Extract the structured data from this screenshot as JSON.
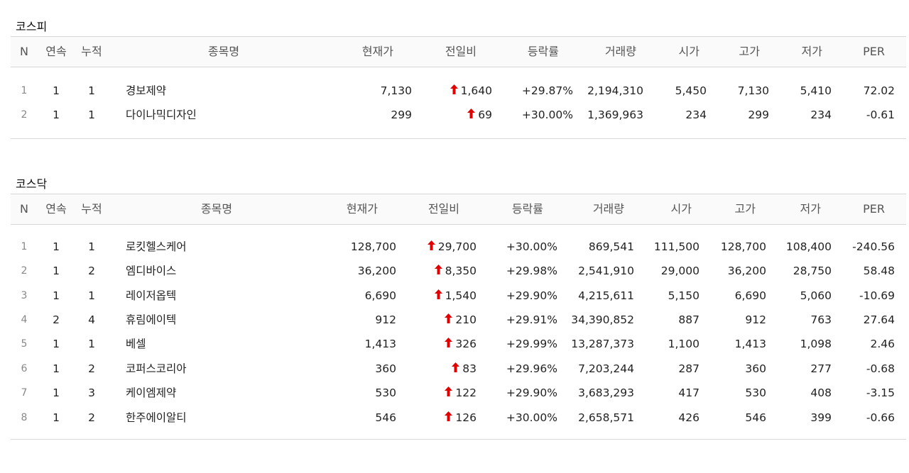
{
  "headers": [
    "N",
    "연속",
    "누적",
    "종목명",
    "현재가",
    "전일비",
    "등락률",
    "거래량",
    "시가",
    "고가",
    "저가",
    "PER"
  ],
  "kospi": {
    "title": "코스피",
    "rows": [
      {
        "n": "1",
        "con": "1",
        "cum": "1",
        "name": "경보제약",
        "price": "7,130",
        "change": "1,640",
        "rate": "+29.87%",
        "volume": "2,194,310",
        "open": "5,450",
        "high": "7,130",
        "low": "5,410",
        "per": "72.02"
      },
      {
        "n": "2",
        "con": "1",
        "cum": "1",
        "name": "다이나믹디자인",
        "price": "299",
        "change": "69",
        "rate": "+30.00%",
        "volume": "1,369,963",
        "open": "234",
        "high": "299",
        "low": "234",
        "per": "-0.61"
      }
    ]
  },
  "kosdaq": {
    "title": "코스닥",
    "rows": [
      {
        "n": "1",
        "con": "1",
        "cum": "1",
        "name": "로킷헬스케어",
        "price": "128,700",
        "change": "29,700",
        "rate": "+30.00%",
        "volume": "869,541",
        "open": "111,500",
        "high": "128,700",
        "low": "108,400",
        "per": "-240.56"
      },
      {
        "n": "2",
        "con": "1",
        "cum": "2",
        "name": "엠디바이스",
        "price": "36,200",
        "change": "8,350",
        "rate": "+29.98%",
        "volume": "2,541,910",
        "open": "29,000",
        "high": "36,200",
        "low": "28,750",
        "per": "58.48"
      },
      {
        "n": "3",
        "con": "1",
        "cum": "1",
        "name": "레이저옵텍",
        "price": "6,690",
        "change": "1,540",
        "rate": "+29.90%",
        "volume": "4,215,611",
        "open": "5,150",
        "high": "6,690",
        "low": "5,060",
        "per": "-10.69"
      },
      {
        "n": "4",
        "con": "2",
        "cum": "4",
        "name": "휴림에이텍",
        "price": "912",
        "change": "210",
        "rate": "+29.91%",
        "volume": "34,390,852",
        "open": "887",
        "high": "912",
        "low": "763",
        "per": "27.64"
      },
      {
        "n": "5",
        "con": "1",
        "cum": "1",
        "name": "베셀",
        "price": "1,413",
        "change": "326",
        "rate": "+29.99%",
        "volume": "13,287,373",
        "open": "1,100",
        "high": "1,413",
        "low": "1,098",
        "per": "2.46"
      },
      {
        "n": "6",
        "con": "1",
        "cum": "2",
        "name": "코퍼스코리아",
        "price": "360",
        "change": "83",
        "rate": "+29.96%",
        "volume": "7,203,244",
        "open": "287",
        "high": "360",
        "low": "277",
        "per": "-0.68"
      },
      {
        "n": "7",
        "con": "1",
        "cum": "3",
        "name": "케이엠제약",
        "price": "530",
        "change": "122",
        "rate": "+29.90%",
        "volume": "3,683,293",
        "open": "417",
        "high": "530",
        "low": "408",
        "per": "-3.15"
      },
      {
        "n": "8",
        "con": "1",
        "cum": "2",
        "name": "한주에이알티",
        "price": "546",
        "change": "126",
        "rate": "+30.00%",
        "volume": "2,658,571",
        "open": "426",
        "high": "546",
        "low": "399",
        "per": "-0.66"
      }
    ]
  },
  "colors": {
    "up": "#e00000"
  },
  "icons": {
    "up_arrow": "up-arrow-icon"
  }
}
